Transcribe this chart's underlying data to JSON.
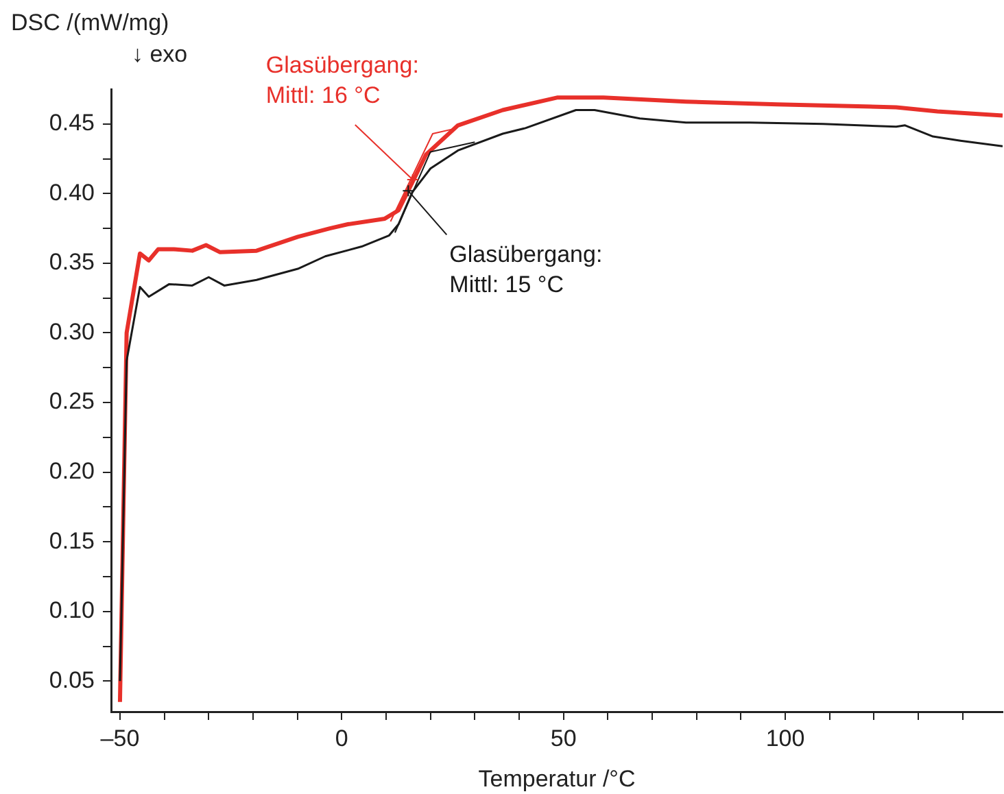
{
  "chart_data": {
    "type": "line",
    "xlabel": "Temperatur /°C",
    "ylabel": "DSC /(mW/mg)\n↓ exo",
    "xlim": [
      -52,
      149
    ],
    "ylim": [
      0.028,
      0.475
    ],
    "xticks": [
      {
        "value": -50,
        "label": "–50"
      },
      {
        "value": -40,
        "label": null
      },
      {
        "value": -30,
        "label": null
      },
      {
        "value": -20,
        "label": null
      },
      {
        "value": -10,
        "label": null
      },
      0,
      {
        "value": 10,
        "label": null
      },
      {
        "value": 20,
        "label": null
      },
      {
        "value": 30,
        "label": null
      },
      {
        "value": 40,
        "label": null
      },
      50,
      {
        "value": 60,
        "label": null
      },
      {
        "value": 70,
        "label": null
      },
      {
        "value": 80,
        "label": null
      },
      {
        "value": 90,
        "label": null
      },
      100,
      {
        "value": 110,
        "label": null
      },
      {
        "value": 120,
        "label": null
      },
      {
        "value": 130,
        "label": null
      },
      {
        "value": 140,
        "label": null
      }
    ],
    "yticks": [
      {
        "value": 0.05,
        "label": "0.05"
      },
      {
        "value": 0.075,
        "label": null
      },
      {
        "value": 0.1,
        "label": "0.10"
      },
      {
        "value": 0.125,
        "label": null
      },
      {
        "value": 0.15,
        "label": "0.15"
      },
      {
        "value": 0.175,
        "label": null
      },
      {
        "value": 0.2,
        "label": "0.20"
      },
      {
        "value": 0.225,
        "label": null
      },
      {
        "value": 0.25,
        "label": "0.25"
      },
      {
        "value": 0.275,
        "label": null
      },
      {
        "value": 0.3,
        "label": "0.30"
      },
      {
        "value": 0.325,
        "label": null
      },
      {
        "value": 0.35,
        "label": "0.35"
      },
      {
        "value": 0.375,
        "label": null
      },
      {
        "value": 0.4,
        "label": "0.40"
      },
      {
        "value": 0.425,
        "label": null
      },
      {
        "value": 0.45,
        "label": "0.45"
      }
    ],
    "grid": false,
    "legend": false,
    "marker": "none",
    "series": [
      {
        "color": "#e8302a",
        "x": [
          -50,
          -48.5,
          -45.5,
          -43.5,
          -41.4,
          -37.8,
          -33.7,
          -30.6,
          -27.5,
          -19.2,
          -9.9,
          -2.7,
          1.4,
          9.7,
          12.8,
          15.9,
          19,
          26.2,
          36.3,
          48.7,
          59,
          77.6,
          98.2,
          125,
          134.3,
          149
        ],
        "values": [
          0.035,
          0.3,
          0.357,
          0.352,
          0.36,
          0.36,
          0.359,
          0.363,
          0.358,
          0.359,
          0.369,
          0.375,
          0.378,
          0.382,
          0.388,
          0.408,
          0.428,
          0.449,
          0.46,
          0.469,
          0.469,
          0.466,
          0.464,
          0.462,
          0.459,
          0.456
        ]
      },
      {
        "color": "#1a1a1a",
        "x": [
          -50,
          -48.5,
          -45.5,
          -43.5,
          -38.9,
          -33.7,
          -30,
          -26.5,
          -19.2,
          -9.9,
          -3.7,
          4.5,
          10.7,
          12.8,
          15.9,
          20,
          26.2,
          36.3,
          41.4,
          52.8,
          57,
          67.2,
          77.6,
          92,
          108.5,
          125,
          127,
          133.3,
          139.5,
          149
        ],
        "values": [
          0.05,
          0.28,
          0.333,
          0.326,
          0.335,
          0.334,
          0.34,
          0.334,
          0.338,
          0.346,
          0.355,
          0.362,
          0.37,
          0.378,
          0.401,
          0.418,
          0.431,
          0.443,
          0.447,
          0.46,
          0.46,
          0.454,
          0.451,
          0.451,
          0.45,
          0.448,
          0.449,
          0.441,
          0.438,
          0.434
        ]
      },
      {
        "color": "#e8302a",
        "x": [
          11,
          20.5,
          26
        ],
        "values": [
          0.38,
          0.443,
          0.447
        ]
      },
      {
        "color": "#1a1a1a",
        "x": [
          12,
          20,
          30
        ],
        "values": [
          0.372,
          0.43,
          0.437
        ]
      }
    ],
    "annotations": [
      {
        "text": "Glasübergang:\nMittl: 16 °C",
        "x": 16,
        "y": 0.41
      },
      {
        "text": "Glasübergang:\nMittl: 15 °C",
        "x": 15,
        "y": 0.402
      }
    ]
  }
}
